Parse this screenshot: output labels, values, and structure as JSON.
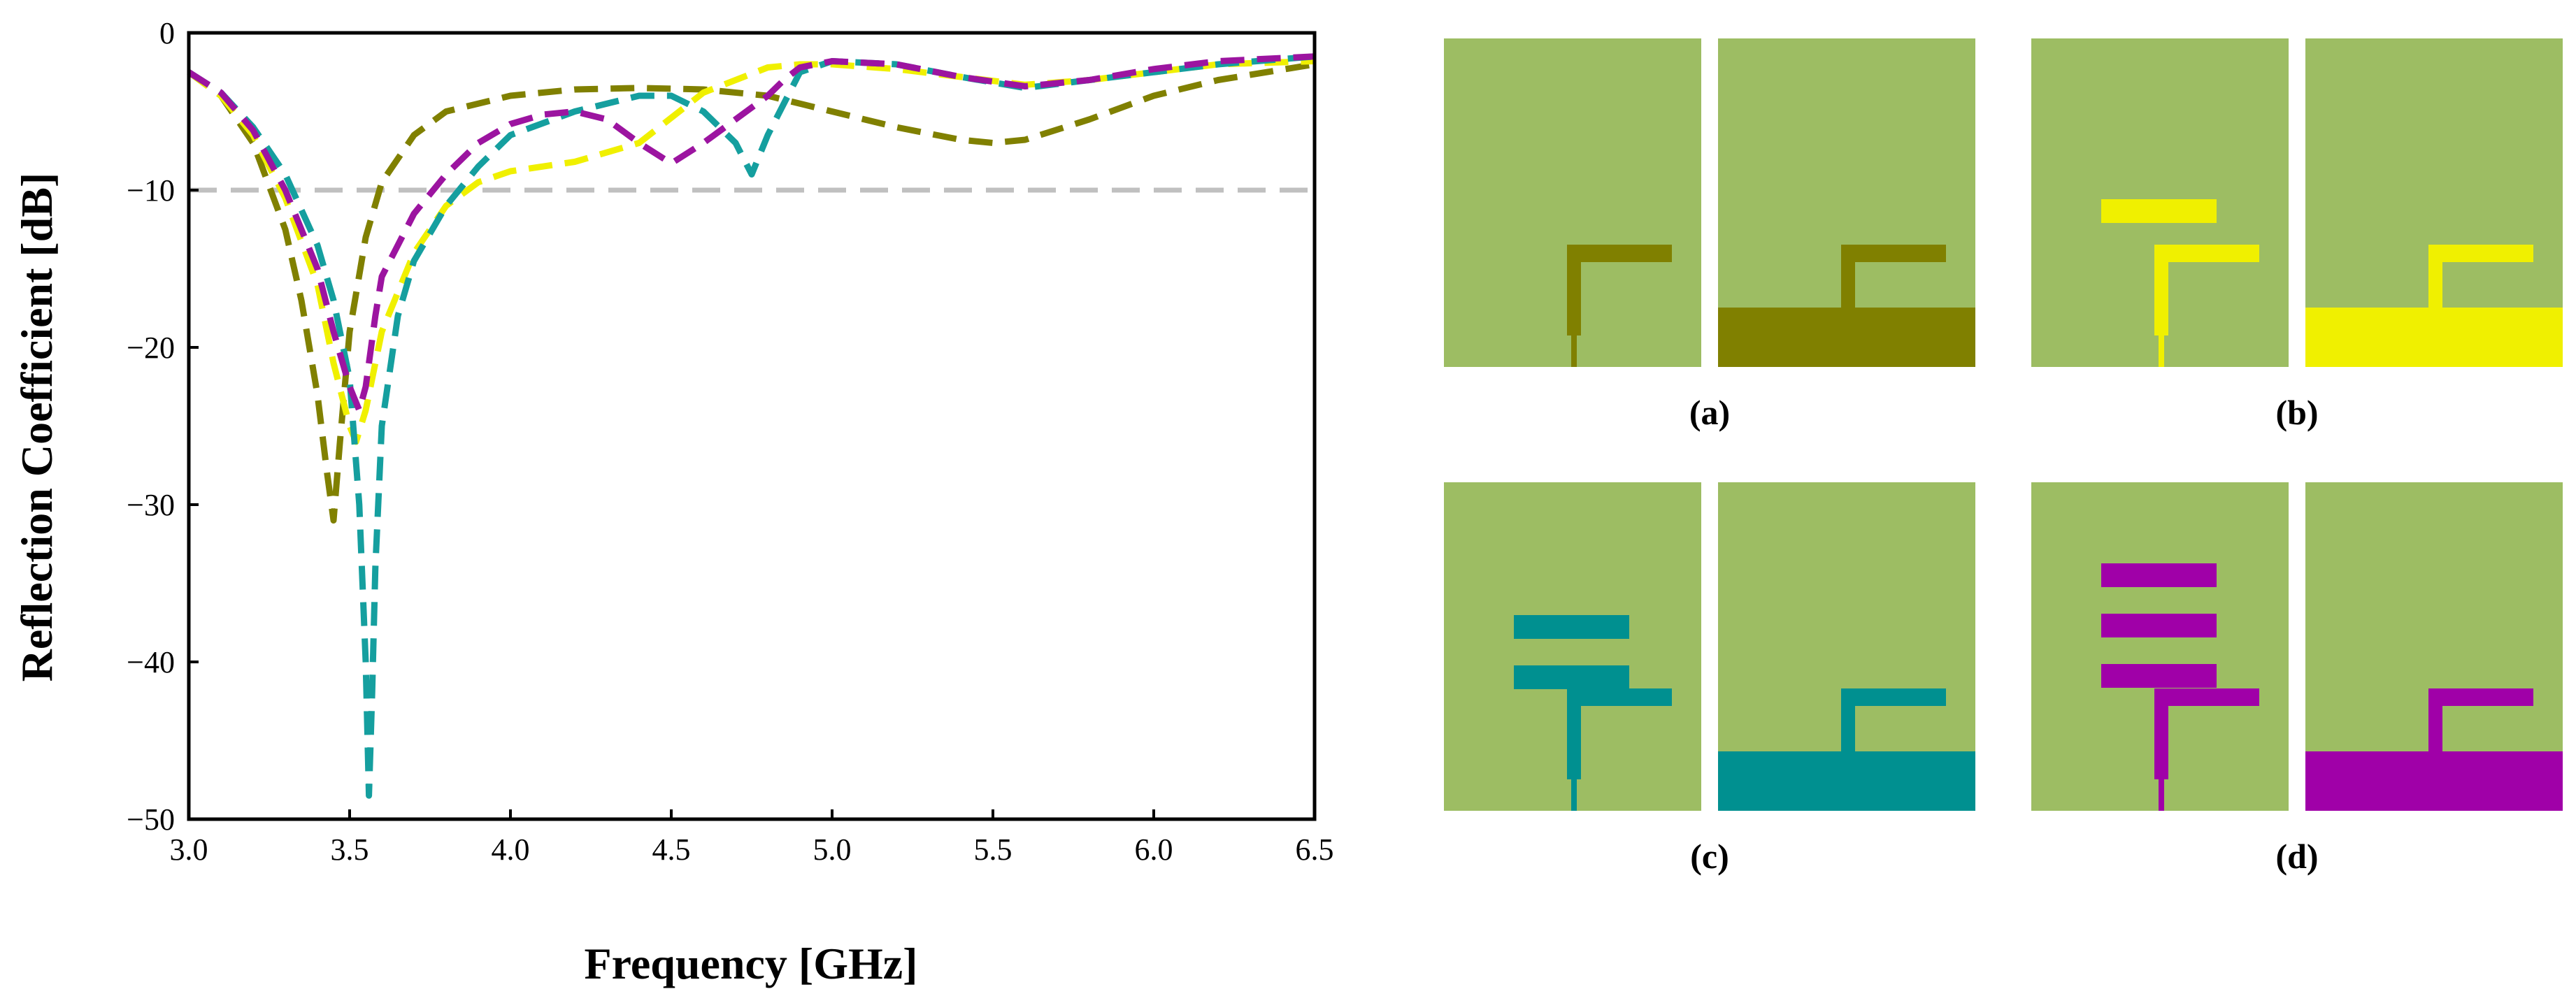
{
  "chart_data": {
    "type": "line",
    "title": "",
    "xlabel": "Frequency [GHz]",
    "ylabel": "Reflection Coefficient [dB]",
    "xlim": [
      3.0,
      6.5
    ],
    "ylim": [
      -50,
      0
    ],
    "x_ticks": [
      "3.0",
      "3.5",
      "4.0",
      "4.5",
      "5.0",
      "5.5",
      "6.0",
      "6.5"
    ],
    "y_ticks": [
      "0",
      "−10",
      "−20",
      "−30",
      "−40",
      "−50"
    ],
    "reference_line": {
      "y": -10,
      "color": "#c0c0c0"
    },
    "series": [
      {
        "name": "(a)",
        "color": "#808000",
        "x": [
          3.0,
          3.1,
          3.2,
          3.3,
          3.35,
          3.4,
          3.43,
          3.45,
          3.47,
          3.5,
          3.55,
          3.6,
          3.7,
          3.8,
          4.0,
          4.2,
          4.4,
          4.6,
          4.8,
          5.0,
          5.2,
          5.4,
          5.5,
          5.6,
          5.8,
          6.0,
          6.2,
          6.5
        ],
        "y": [
          -2.5,
          -4.0,
          -7.0,
          -12.5,
          -17.0,
          -23.0,
          -28.0,
          -31.0,
          -26.0,
          -19.0,
          -13.0,
          -9.5,
          -6.5,
          -5.0,
          -4.0,
          -3.6,
          -3.5,
          -3.6,
          -4.0,
          -5.0,
          -6.0,
          -6.8,
          -7.0,
          -6.8,
          -5.5,
          -4.0,
          -3.0,
          -2.0
        ]
      },
      {
        "name": "(b)",
        "color": "#f0f000",
        "x": [
          3.0,
          3.1,
          3.2,
          3.3,
          3.4,
          3.45,
          3.5,
          3.52,
          3.55,
          3.6,
          3.7,
          3.8,
          3.9,
          4.0,
          4.2,
          4.4,
          4.6,
          4.8,
          4.9,
          5.0,
          5.2,
          5.4,
          5.6,
          5.8,
          6.0,
          6.2,
          6.5
        ],
        "y": [
          -2.5,
          -4.0,
          -6.5,
          -10.5,
          -16.0,
          -21.0,
          -25.0,
          -26.0,
          -24.0,
          -19.0,
          -14.0,
          -11.0,
          -9.5,
          -8.8,
          -8.2,
          -7.0,
          -3.8,
          -2.2,
          -2.0,
          -2.0,
          -2.3,
          -2.8,
          -3.3,
          -3.0,
          -2.5,
          -2.0,
          -1.8
        ]
      },
      {
        "name": "(c)",
        "color": "#159f9f",
        "x": [
          3.0,
          3.1,
          3.2,
          3.3,
          3.4,
          3.45,
          3.5,
          3.53,
          3.55,
          3.56,
          3.57,
          3.58,
          3.6,
          3.65,
          3.7,
          3.8,
          3.9,
          4.0,
          4.2,
          4.4,
          4.5,
          4.6,
          4.7,
          4.75,
          4.8,
          4.9,
          5.0,
          5.2,
          5.4,
          5.6,
          5.8,
          6.0,
          6.2,
          6.5
        ],
        "y": [
          -2.5,
          -3.8,
          -6.0,
          -9.0,
          -13.5,
          -17.0,
          -22.0,
          -30.0,
          -40.0,
          -48.5,
          -42.0,
          -34.0,
          -25.0,
          -18.0,
          -14.5,
          -11.0,
          -8.5,
          -6.5,
          -5.0,
          -4.0,
          -4.0,
          -5.0,
          -7.0,
          -9.0,
          -6.5,
          -2.5,
          -1.8,
          -2.0,
          -2.8,
          -3.5,
          -3.0,
          -2.5,
          -2.0,
          -1.5
        ]
      },
      {
        "name": "(d)",
        "color": "#9c14a0",
        "x": [
          3.0,
          3.1,
          3.2,
          3.3,
          3.4,
          3.45,
          3.5,
          3.53,
          3.55,
          3.58,
          3.6,
          3.7,
          3.8,
          3.9,
          4.0,
          4.1,
          4.2,
          4.3,
          4.4,
          4.5,
          4.6,
          4.7,
          4.8,
          4.85,
          4.9,
          5.0,
          5.2,
          5.4,
          5.6,
          5.8,
          6.0,
          6.2,
          6.5
        ],
        "y": [
          -2.5,
          -3.8,
          -6.2,
          -10.0,
          -15.0,
          -19.0,
          -22.5,
          -24.0,
          -22.5,
          -18.0,
          -15.5,
          -11.5,
          -9.0,
          -7.0,
          -5.8,
          -5.2,
          -5.0,
          -5.5,
          -7.0,
          -8.3,
          -7.0,
          -5.5,
          -4.0,
          -3.0,
          -2.2,
          -1.8,
          -2.0,
          -2.8,
          -3.4,
          -3.0,
          -2.3,
          -1.8,
          -1.5
        ]
      }
    ]
  },
  "panels": [
    {
      "label": "(a)",
      "color": "#808000",
      "parasitic_strips": 0
    },
    {
      "label": "(b)",
      "color": "#f0f000",
      "parasitic_strips": 1
    },
    {
      "label": "(c)",
      "color": "#009090",
      "parasitic_strips": 2
    },
    {
      "label": "(d)",
      "color": "#a000a8",
      "parasitic_strips": 3
    }
  ],
  "colors": {
    "substrate": "#9dbd63",
    "reference_line": "#c0c0c0",
    "axes": "#000000"
  }
}
